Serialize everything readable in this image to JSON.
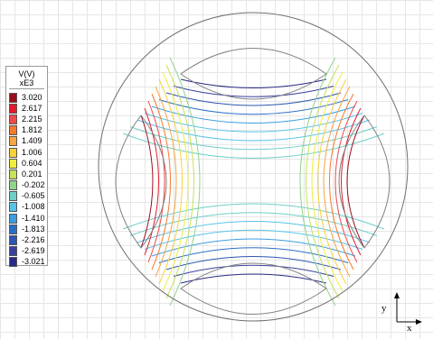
{
  "legend": {
    "unit": "V(V)",
    "scale": "xE3",
    "entries": [
      {
        "label": "3.020",
        "color": "#9b0e1e"
      },
      {
        "label": "2.617",
        "color": "#e21b2c"
      },
      {
        "label": "2.215",
        "color": "#f0494a"
      },
      {
        "label": "1.812",
        "color": "#f57a2a"
      },
      {
        "label": "1.409",
        "color": "#f9a540"
      },
      {
        "label": "1.006",
        "color": "#fbd03a"
      },
      {
        "label": "0.604",
        "color": "#f0ee3b"
      },
      {
        "label": "0.201",
        "color": "#c4e25a"
      },
      {
        "label": "-0.202",
        "color": "#8fd58b"
      },
      {
        "label": "-0.605",
        "color": "#6fcfc9"
      },
      {
        "label": "-1.008",
        "color": "#57c3ea"
      },
      {
        "label": "-1.410",
        "color": "#3a9ee0"
      },
      {
        "label": "-1.813",
        "color": "#2a6fc7"
      },
      {
        "label": "-2.216",
        "color": "#2d55b2"
      },
      {
        "label": "-2.619",
        "color": "#3b3f9c"
      },
      {
        "label": "-3.021",
        "color": "#2a2a86"
      }
    ]
  },
  "axes": {
    "y_label": "y",
    "x_label": "x"
  }
}
